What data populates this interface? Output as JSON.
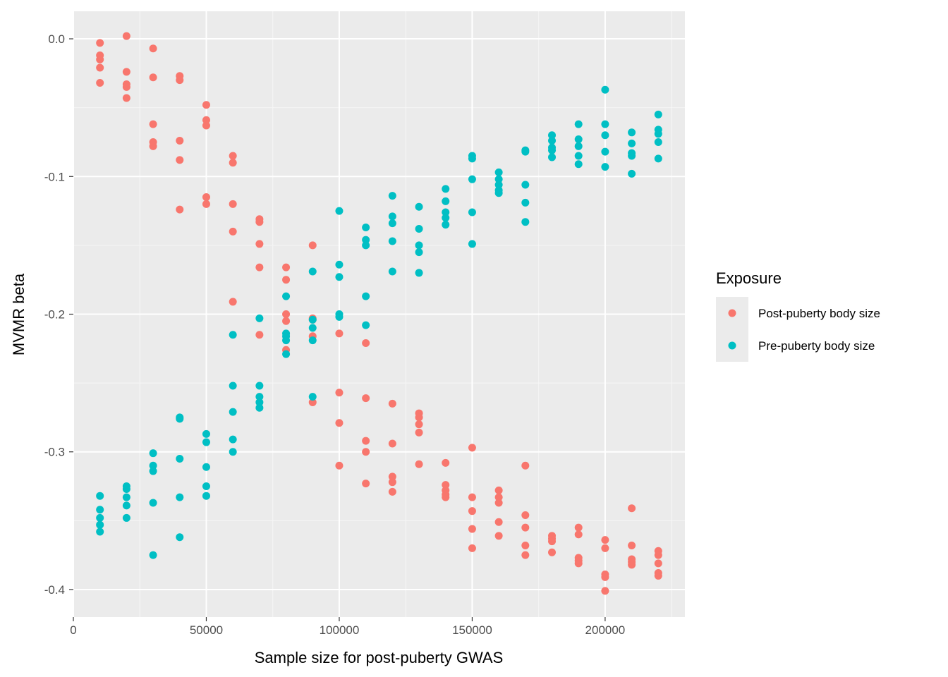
{
  "chart_data": {
    "type": "scatter",
    "title": "",
    "xlabel": "Sample size for post-puberty GWAS",
    "ylabel": "MVMR beta",
    "xlim": [
      0,
      230000
    ],
    "ylim": [
      -0.42,
      0.02
    ],
    "x_ticks": [
      0,
      50000,
      100000,
      150000,
      200000
    ],
    "x_tick_labels": [
      "0",
      "50000",
      "100000",
      "150000",
      "200000"
    ],
    "y_ticks": [
      0.0,
      -0.1,
      -0.2,
      -0.3,
      -0.4
    ],
    "y_tick_labels": [
      "0.0",
      "-0.1",
      "-0.2",
      "-0.3",
      "-0.4"
    ],
    "grid": true,
    "legend": {
      "title": "Exposure",
      "position": "right"
    },
    "series": [
      {
        "name": "Post-puberty body size",
        "color": "#F8766D",
        "points": [
          [
            10000,
            -0.003
          ],
          [
            10000,
            -0.012
          ],
          [
            10000,
            -0.015
          ],
          [
            10000,
            -0.021
          ],
          [
            10000,
            -0.032
          ],
          [
            20000,
            0.002
          ],
          [
            20000,
            -0.024
          ],
          [
            20000,
            -0.033
          ],
          [
            20000,
            -0.035
          ],
          [
            20000,
            -0.043
          ],
          [
            30000,
            -0.007
          ],
          [
            30000,
            -0.028
          ],
          [
            30000,
            -0.062
          ],
          [
            30000,
            -0.075
          ],
          [
            30000,
            -0.078
          ],
          [
            40000,
            -0.027
          ],
          [
            40000,
            -0.03
          ],
          [
            40000,
            -0.074
          ],
          [
            40000,
            -0.088
          ],
          [
            40000,
            -0.124
          ],
          [
            50000,
            -0.048
          ],
          [
            50000,
            -0.059
          ],
          [
            50000,
            -0.063
          ],
          [
            50000,
            -0.115
          ],
          [
            50000,
            -0.12
          ],
          [
            60000,
            -0.085
          ],
          [
            60000,
            -0.09
          ],
          [
            60000,
            -0.12
          ],
          [
            60000,
            -0.14
          ],
          [
            60000,
            -0.191
          ],
          [
            70000,
            -0.131
          ],
          [
            70000,
            -0.133
          ],
          [
            70000,
            -0.149
          ],
          [
            70000,
            -0.166
          ],
          [
            70000,
            -0.215
          ],
          [
            80000,
            -0.166
          ],
          [
            80000,
            -0.175
          ],
          [
            80000,
            -0.2
          ],
          [
            80000,
            -0.205
          ],
          [
            80000,
            -0.226
          ],
          [
            90000,
            -0.15
          ],
          [
            90000,
            -0.203
          ],
          [
            90000,
            -0.204
          ],
          [
            90000,
            -0.216
          ],
          [
            90000,
            -0.264
          ],
          [
            100000,
            -0.214
          ],
          [
            100000,
            -0.257
          ],
          [
            100000,
            -0.279
          ],
          [
            100000,
            -0.31
          ],
          [
            110000,
            -0.221
          ],
          [
            110000,
            -0.261
          ],
          [
            110000,
            -0.292
          ],
          [
            110000,
            -0.3
          ],
          [
            110000,
            -0.323
          ],
          [
            120000,
            -0.265
          ],
          [
            120000,
            -0.294
          ],
          [
            120000,
            -0.318
          ],
          [
            120000,
            -0.322
          ],
          [
            120000,
            -0.329
          ],
          [
            130000,
            -0.272
          ],
          [
            130000,
            -0.275
          ],
          [
            130000,
            -0.28
          ],
          [
            130000,
            -0.286
          ],
          [
            130000,
            -0.309
          ],
          [
            140000,
            -0.308
          ],
          [
            140000,
            -0.324
          ],
          [
            140000,
            -0.328
          ],
          [
            140000,
            -0.331
          ],
          [
            140000,
            -0.333
          ],
          [
            150000,
            -0.297
          ],
          [
            150000,
            -0.333
          ],
          [
            150000,
            -0.343
          ],
          [
            150000,
            -0.356
          ],
          [
            150000,
            -0.37
          ],
          [
            160000,
            -0.328
          ],
          [
            160000,
            -0.333
          ],
          [
            160000,
            -0.337
          ],
          [
            160000,
            -0.351
          ],
          [
            160000,
            -0.361
          ],
          [
            170000,
            -0.31
          ],
          [
            170000,
            -0.346
          ],
          [
            170000,
            -0.355
          ],
          [
            170000,
            -0.368
          ],
          [
            170000,
            -0.375
          ],
          [
            180000,
            -0.361
          ],
          [
            180000,
            -0.363
          ],
          [
            180000,
            -0.365
          ],
          [
            180000,
            -0.373
          ],
          [
            190000,
            -0.355
          ],
          [
            190000,
            -0.36
          ],
          [
            190000,
            -0.377
          ],
          [
            190000,
            -0.379
          ],
          [
            190000,
            -0.381
          ],
          [
            200000,
            -0.364
          ],
          [
            200000,
            -0.37
          ],
          [
            200000,
            -0.389
          ],
          [
            200000,
            -0.391
          ],
          [
            200000,
            -0.401
          ],
          [
            210000,
            -0.341
          ],
          [
            210000,
            -0.368
          ],
          [
            210000,
            -0.378
          ],
          [
            210000,
            -0.38
          ],
          [
            210000,
            -0.382
          ],
          [
            220000,
            -0.372
          ],
          [
            220000,
            -0.375
          ],
          [
            220000,
            -0.381
          ],
          [
            220000,
            -0.388
          ],
          [
            220000,
            -0.39
          ]
        ]
      },
      {
        "name": "Pre-puberty body size",
        "color": "#00BFC4",
        "points": [
          [
            10000,
            -0.332
          ],
          [
            10000,
            -0.342
          ],
          [
            10000,
            -0.348
          ],
          [
            10000,
            -0.353
          ],
          [
            10000,
            -0.358
          ],
          [
            20000,
            -0.325
          ],
          [
            20000,
            -0.327
          ],
          [
            20000,
            -0.333
          ],
          [
            20000,
            -0.339
          ],
          [
            20000,
            -0.348
          ],
          [
            30000,
            -0.301
          ],
          [
            30000,
            -0.31
          ],
          [
            30000,
            -0.314
          ],
          [
            30000,
            -0.337
          ],
          [
            30000,
            -0.375
          ],
          [
            40000,
            -0.275
          ],
          [
            40000,
            -0.276
          ],
          [
            40000,
            -0.305
          ],
          [
            40000,
            -0.333
          ],
          [
            40000,
            -0.362
          ],
          [
            50000,
            -0.287
          ],
          [
            50000,
            -0.293
          ],
          [
            50000,
            -0.311
          ],
          [
            50000,
            -0.325
          ],
          [
            50000,
            -0.332
          ],
          [
            60000,
            -0.215
          ],
          [
            60000,
            -0.252
          ],
          [
            60000,
            -0.271
          ],
          [
            60000,
            -0.291
          ],
          [
            60000,
            -0.3
          ],
          [
            70000,
            -0.203
          ],
          [
            70000,
            -0.252
          ],
          [
            70000,
            -0.26
          ],
          [
            70000,
            -0.264
          ],
          [
            70000,
            -0.268
          ],
          [
            80000,
            -0.187
          ],
          [
            80000,
            -0.214
          ],
          [
            80000,
            -0.216
          ],
          [
            80000,
            -0.219
          ],
          [
            80000,
            -0.229
          ],
          [
            90000,
            -0.169
          ],
          [
            90000,
            -0.204
          ],
          [
            90000,
            -0.21
          ],
          [
            90000,
            -0.219
          ],
          [
            90000,
            -0.26
          ],
          [
            100000,
            -0.125
          ],
          [
            100000,
            -0.164
          ],
          [
            100000,
            -0.173
          ],
          [
            100000,
            -0.2
          ],
          [
            100000,
            -0.202
          ],
          [
            110000,
            -0.137
          ],
          [
            110000,
            -0.146
          ],
          [
            110000,
            -0.15
          ],
          [
            110000,
            -0.187
          ],
          [
            110000,
            -0.208
          ],
          [
            120000,
            -0.114
          ],
          [
            120000,
            -0.129
          ],
          [
            120000,
            -0.134
          ],
          [
            120000,
            -0.147
          ],
          [
            120000,
            -0.169
          ],
          [
            130000,
            -0.122
          ],
          [
            130000,
            -0.138
          ],
          [
            130000,
            -0.15
          ],
          [
            130000,
            -0.155
          ],
          [
            130000,
            -0.17
          ],
          [
            140000,
            -0.109
          ],
          [
            140000,
            -0.118
          ],
          [
            140000,
            -0.126
          ],
          [
            140000,
            -0.13
          ],
          [
            140000,
            -0.135
          ],
          [
            150000,
            -0.085
          ],
          [
            150000,
            -0.087
          ],
          [
            150000,
            -0.102
          ],
          [
            150000,
            -0.126
          ],
          [
            150000,
            -0.149
          ],
          [
            160000,
            -0.097
          ],
          [
            160000,
            -0.102
          ],
          [
            160000,
            -0.106
          ],
          [
            160000,
            -0.11
          ],
          [
            160000,
            -0.112
          ],
          [
            170000,
            -0.081
          ],
          [
            170000,
            -0.082
          ],
          [
            170000,
            -0.106
          ],
          [
            170000,
            -0.119
          ],
          [
            170000,
            -0.133
          ],
          [
            180000,
            -0.07
          ],
          [
            180000,
            -0.074
          ],
          [
            180000,
            -0.079
          ],
          [
            180000,
            -0.081
          ],
          [
            180000,
            -0.086
          ],
          [
            190000,
            -0.062
          ],
          [
            190000,
            -0.073
          ],
          [
            190000,
            -0.078
          ],
          [
            190000,
            -0.085
          ],
          [
            190000,
            -0.091
          ],
          [
            200000,
            -0.037
          ],
          [
            200000,
            -0.062
          ],
          [
            200000,
            -0.07
          ],
          [
            200000,
            -0.082
          ],
          [
            200000,
            -0.093
          ],
          [
            210000,
            -0.068
          ],
          [
            210000,
            -0.076
          ],
          [
            210000,
            -0.083
          ],
          [
            210000,
            -0.085
          ],
          [
            210000,
            -0.098
          ],
          [
            220000,
            -0.055
          ],
          [
            220000,
            -0.066
          ],
          [
            220000,
            -0.069
          ],
          [
            220000,
            -0.075
          ],
          [
            220000,
            -0.087
          ]
        ]
      }
    ]
  }
}
